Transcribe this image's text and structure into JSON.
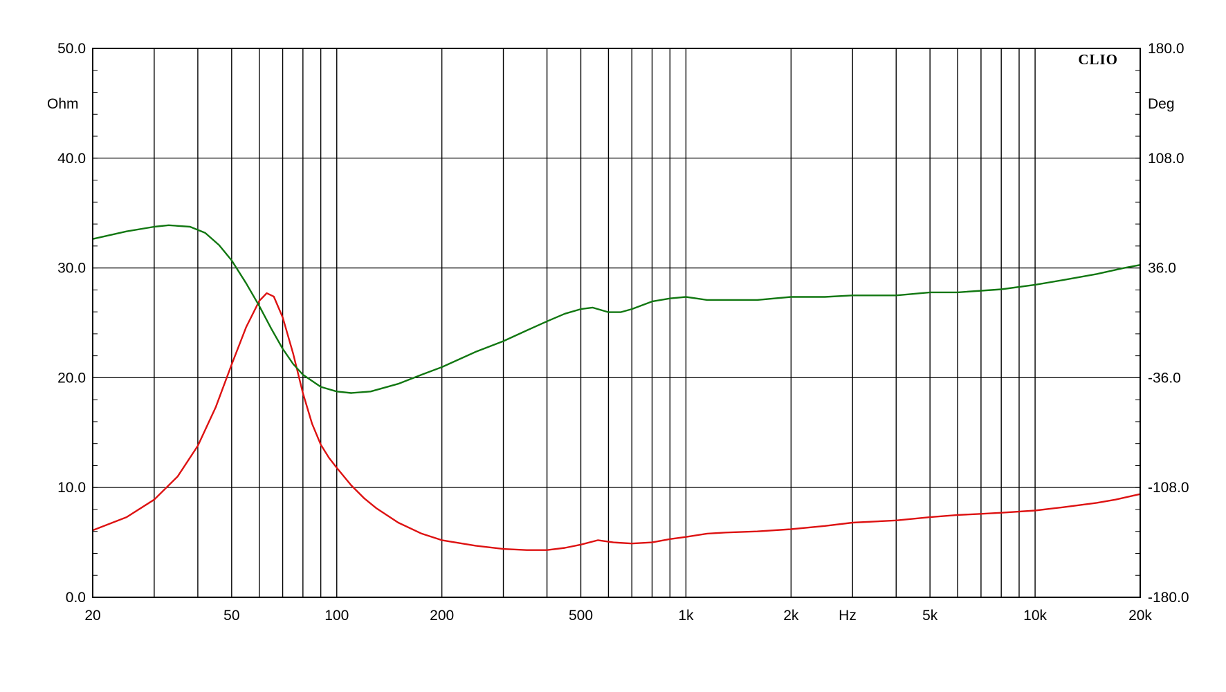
{
  "chart_data": {
    "type": "line",
    "brand": "CLIO",
    "xlabel": "Hz",
    "ylabel_left": "Ohm",
    "ylabel_right": "Deg",
    "x_scale": "log",
    "xlim": [
      20,
      20000
    ],
    "ylim_left": [
      0,
      50
    ],
    "ylim_right": [
      -180,
      180
    ],
    "grid": true,
    "x_tick_labels": [
      {
        "value": 20,
        "label": "20"
      },
      {
        "value": 50,
        "label": "50"
      },
      {
        "value": 100,
        "label": "100"
      },
      {
        "value": 200,
        "label": "200"
      },
      {
        "value": 500,
        "label": "500"
      },
      {
        "value": 1000,
        "label": "1k"
      },
      {
        "value": 2000,
        "label": "2k"
      },
      {
        "value": 5000,
        "label": "5k"
      },
      {
        "value": 10000,
        "label": "10k"
      },
      {
        "value": 20000,
        "label": "20k"
      }
    ],
    "y_left_ticks": [
      {
        "value": 0,
        "label": "0.0"
      },
      {
        "value": 10,
        "label": "10.0"
      },
      {
        "value": 20,
        "label": "20.0"
      },
      {
        "value": 30,
        "label": "30.0"
      },
      {
        "value": 40,
        "label": "40.0"
      },
      {
        "value": 50,
        "label": "50.0"
      }
    ],
    "y_right_ticks": [
      {
        "value": -180,
        "label": "-180.0"
      },
      {
        "value": -108,
        "label": "-108.0"
      },
      {
        "value": -36,
        "label": "-36.0"
      },
      {
        "value": 36,
        "label": "36.0"
      },
      {
        "value": 108,
        "label": "108.0"
      },
      {
        "value": 180,
        "label": "180.0"
      }
    ],
    "series": [
      {
        "color": "#dd1111",
        "axis": "left",
        "points": [
          [
            20,
            6.1
          ],
          [
            25,
            7.3
          ],
          [
            30,
            8.9
          ],
          [
            35,
            11.0
          ],
          [
            40,
            13.8
          ],
          [
            45,
            17.3
          ],
          [
            50,
            21.2
          ],
          [
            55,
            24.6
          ],
          [
            60,
            27.0
          ],
          [
            63,
            27.7
          ],
          [
            66,
            27.4
          ],
          [
            70,
            25.5
          ],
          [
            75,
            22.2
          ],
          [
            80,
            18.6
          ],
          [
            85,
            15.8
          ],
          [
            90,
            13.9
          ],
          [
            95,
            12.7
          ],
          [
            100,
            11.8
          ],
          [
            110,
            10.2
          ],
          [
            120,
            9.0
          ],
          [
            130,
            8.1
          ],
          [
            150,
            6.8
          ],
          [
            175,
            5.8
          ],
          [
            200,
            5.2
          ],
          [
            250,
            4.7
          ],
          [
            300,
            4.4
          ],
          [
            350,
            4.3
          ],
          [
            400,
            4.3
          ],
          [
            450,
            4.5
          ],
          [
            500,
            4.8
          ],
          [
            560,
            5.2
          ],
          [
            620,
            5.0
          ],
          [
            700,
            4.9
          ],
          [
            800,
            5.0
          ],
          [
            900,
            5.3
          ],
          [
            1000,
            5.5
          ],
          [
            1150,
            5.8
          ],
          [
            1300,
            5.9
          ],
          [
            1600,
            6.0
          ],
          [
            2000,
            6.2
          ],
          [
            2500,
            6.5
          ],
          [
            3000,
            6.8
          ],
          [
            4000,
            7.0
          ],
          [
            5000,
            7.3
          ],
          [
            6000,
            7.5
          ],
          [
            7000,
            7.6
          ],
          [
            8000,
            7.7
          ],
          [
            10000,
            7.9
          ],
          [
            12000,
            8.2
          ],
          [
            15000,
            8.6
          ],
          [
            17000,
            8.9
          ],
          [
            20000,
            9.4
          ]
        ]
      },
      {
        "color": "#117711",
        "axis": "right",
        "points": [
          [
            20,
            55
          ],
          [
            25,
            60
          ],
          [
            30,
            63
          ],
          [
            33,
            64
          ],
          [
            38,
            63
          ],
          [
            42,
            59
          ],
          [
            46,
            51
          ],
          [
            50,
            41
          ],
          [
            55,
            26
          ],
          [
            60,
            11
          ],
          [
            65,
            -4
          ],
          [
            70,
            -17
          ],
          [
            75,
            -27
          ],
          [
            80,
            -34
          ],
          [
            90,
            -42
          ],
          [
            100,
            -45
          ],
          [
            110,
            -46
          ],
          [
            125,
            -45
          ],
          [
            150,
            -40
          ],
          [
            175,
            -34
          ],
          [
            200,
            -29
          ],
          [
            250,
            -19
          ],
          [
            300,
            -12
          ],
          [
            350,
            -5
          ],
          [
            400,
            1
          ],
          [
            450,
            6
          ],
          [
            500,
            9
          ],
          [
            540,
            10
          ],
          [
            600,
            7
          ],
          [
            650,
            7
          ],
          [
            700,
            9
          ],
          [
            800,
            14
          ],
          [
            900,
            16
          ],
          [
            1000,
            17
          ],
          [
            1150,
            15
          ],
          [
            1300,
            15
          ],
          [
            1600,
            15
          ],
          [
            2000,
            17
          ],
          [
            2500,
            17
          ],
          [
            3000,
            18
          ],
          [
            4000,
            18
          ],
          [
            5000,
            20
          ],
          [
            6000,
            20
          ],
          [
            8000,
            22
          ],
          [
            10000,
            25
          ],
          [
            12000,
            28
          ],
          [
            15000,
            32
          ],
          [
            18000,
            36
          ],
          [
            20000,
            38
          ]
        ]
      }
    ]
  }
}
